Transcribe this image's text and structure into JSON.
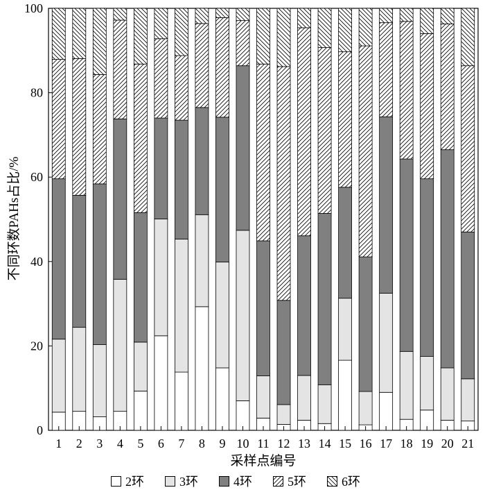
{
  "chart_data": {
    "type": "bar",
    "stacked": true,
    "xlabel": "采样点编号",
    "ylabel": "不同环数PAHs占比/%",
    "ylim": [
      0,
      100
    ],
    "yticks": [
      "0",
      "20",
      "40",
      "60",
      "80",
      "100"
    ],
    "grid": false,
    "legend_position": "bottom",
    "categories": [
      "1",
      "2",
      "3",
      "4",
      "5",
      "6",
      "7",
      "8",
      "9",
      "10",
      "11",
      "12",
      "13",
      "14",
      "15",
      "16",
      "17",
      "18",
      "19",
      "20",
      "21"
    ],
    "series": [
      {
        "name": "2环",
        "fill": "#ffffff",
        "pattern": "none",
        "values": [
          4.3,
          4.5,
          3.2,
          4.5,
          9.3,
          22.4,
          13.8,
          29.3,
          14.8,
          7.0,
          2.9,
          1.4,
          2.4,
          1.6,
          16.6,
          1.3,
          9.0,
          2.6,
          4.8,
          2.4,
          2.2
        ]
      },
      {
        "name": "3环",
        "fill": "#e4e4e4",
        "pattern": "none",
        "values": [
          17.3,
          19.9,
          17.1,
          31.3,
          11.6,
          27.7,
          31.5,
          21.8,
          25.1,
          40.4,
          10.0,
          4.7,
          10.6,
          9.2,
          14.7,
          7.9,
          23.5,
          16.1,
          12.7,
          12.4,
          10.0
        ]
      },
      {
        "name": "4环",
        "fill": "#808080",
        "pattern": "none",
        "values": [
          38.0,
          31.3,
          38.1,
          38.0,
          30.7,
          23.9,
          28.2,
          25.4,
          34.3,
          39.0,
          32.0,
          24.7,
          33.1,
          40.6,
          26.3,
          31.9,
          41.8,
          45.6,
          42.1,
          51.7,
          34.8
        ]
      },
      {
        "name": "5环",
        "fill": "#ffffff",
        "pattern": "hatch-forward",
        "values": [
          28.3,
          32.4,
          25.9,
          23.4,
          35.2,
          18.8,
          15.3,
          19.9,
          23.6,
          10.7,
          41.9,
          55.4,
          49.3,
          39.3,
          32.1,
          50.0,
          22.3,
          32.6,
          34.4,
          29.8,
          39.4
        ]
      },
      {
        "name": "6环",
        "fill": "#ffffff",
        "pattern": "hatch-back",
        "values": [
          12.1,
          11.9,
          15.7,
          2.8,
          13.2,
          7.2,
          11.2,
          3.6,
          2.2,
          2.9,
          13.2,
          13.8,
          4.6,
          9.3,
          10.3,
          8.9,
          3.4,
          3.1,
          6.0,
          3.7,
          13.6
        ]
      }
    ]
  }
}
